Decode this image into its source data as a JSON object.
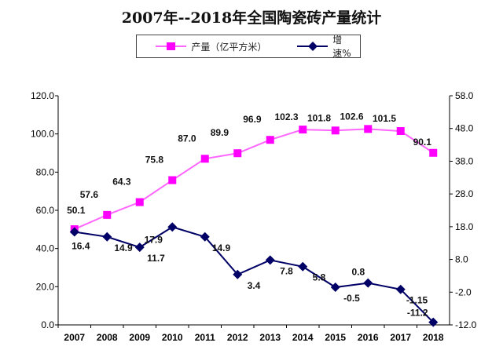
{
  "chart_data": {
    "type": "line",
    "title": "2007年--2018年全国陶瓷砖产量统计",
    "categories": [
      "2007",
      "2008",
      "2009",
      "2010",
      "2011",
      "2012",
      "2013",
      "2014",
      "2015",
      "2016",
      "2017",
      "2018"
    ],
    "series": [
      {
        "name": "产量（亿平方米）",
        "axis": "left",
        "color": "#ff00ff",
        "marker": "square",
        "values": [
          50.1,
          57.6,
          64.3,
          75.8,
          87.0,
          89.9,
          96.9,
          102.3,
          101.8,
          102.6,
          101.5,
          90.1
        ],
        "labels": [
          "50.1",
          "57.6",
          "64.3",
          "75.8",
          "87.0",
          "89.9",
          "96.9",
          "102.3",
          "101.8",
          "102.6",
          "101.5",
          "90.1"
        ]
      },
      {
        "name": "增速%",
        "axis": "right",
        "color": "#000066",
        "marker": "diamond",
        "values": [
          16.4,
          14.9,
          11.7,
          17.9,
          14.9,
          3.4,
          7.8,
          5.8,
          -0.5,
          0.8,
          -1.15,
          -11.2
        ],
        "labels": [
          "16.4",
          "14.9",
          "11.7",
          "17.9",
          "14.9",
          "3.4",
          "7.8",
          "5.8",
          "-0.5",
          "0.8",
          "-1.15",
          "-11.2"
        ]
      }
    ],
    "ylim_left": [
      0,
      120
    ],
    "yticks_left": [
      "0.0",
      "20.0",
      "40.0",
      "60.0",
      "80.0",
      "100.0",
      "120.0"
    ],
    "ylim_right": [
      -12,
      58
    ],
    "yticks_right": [
      "-12.0",
      "-2.0",
      "8.0",
      "18.0",
      "28.0",
      "38.0",
      "48.0",
      "58.0"
    ],
    "grid": false,
    "legend": "top"
  }
}
